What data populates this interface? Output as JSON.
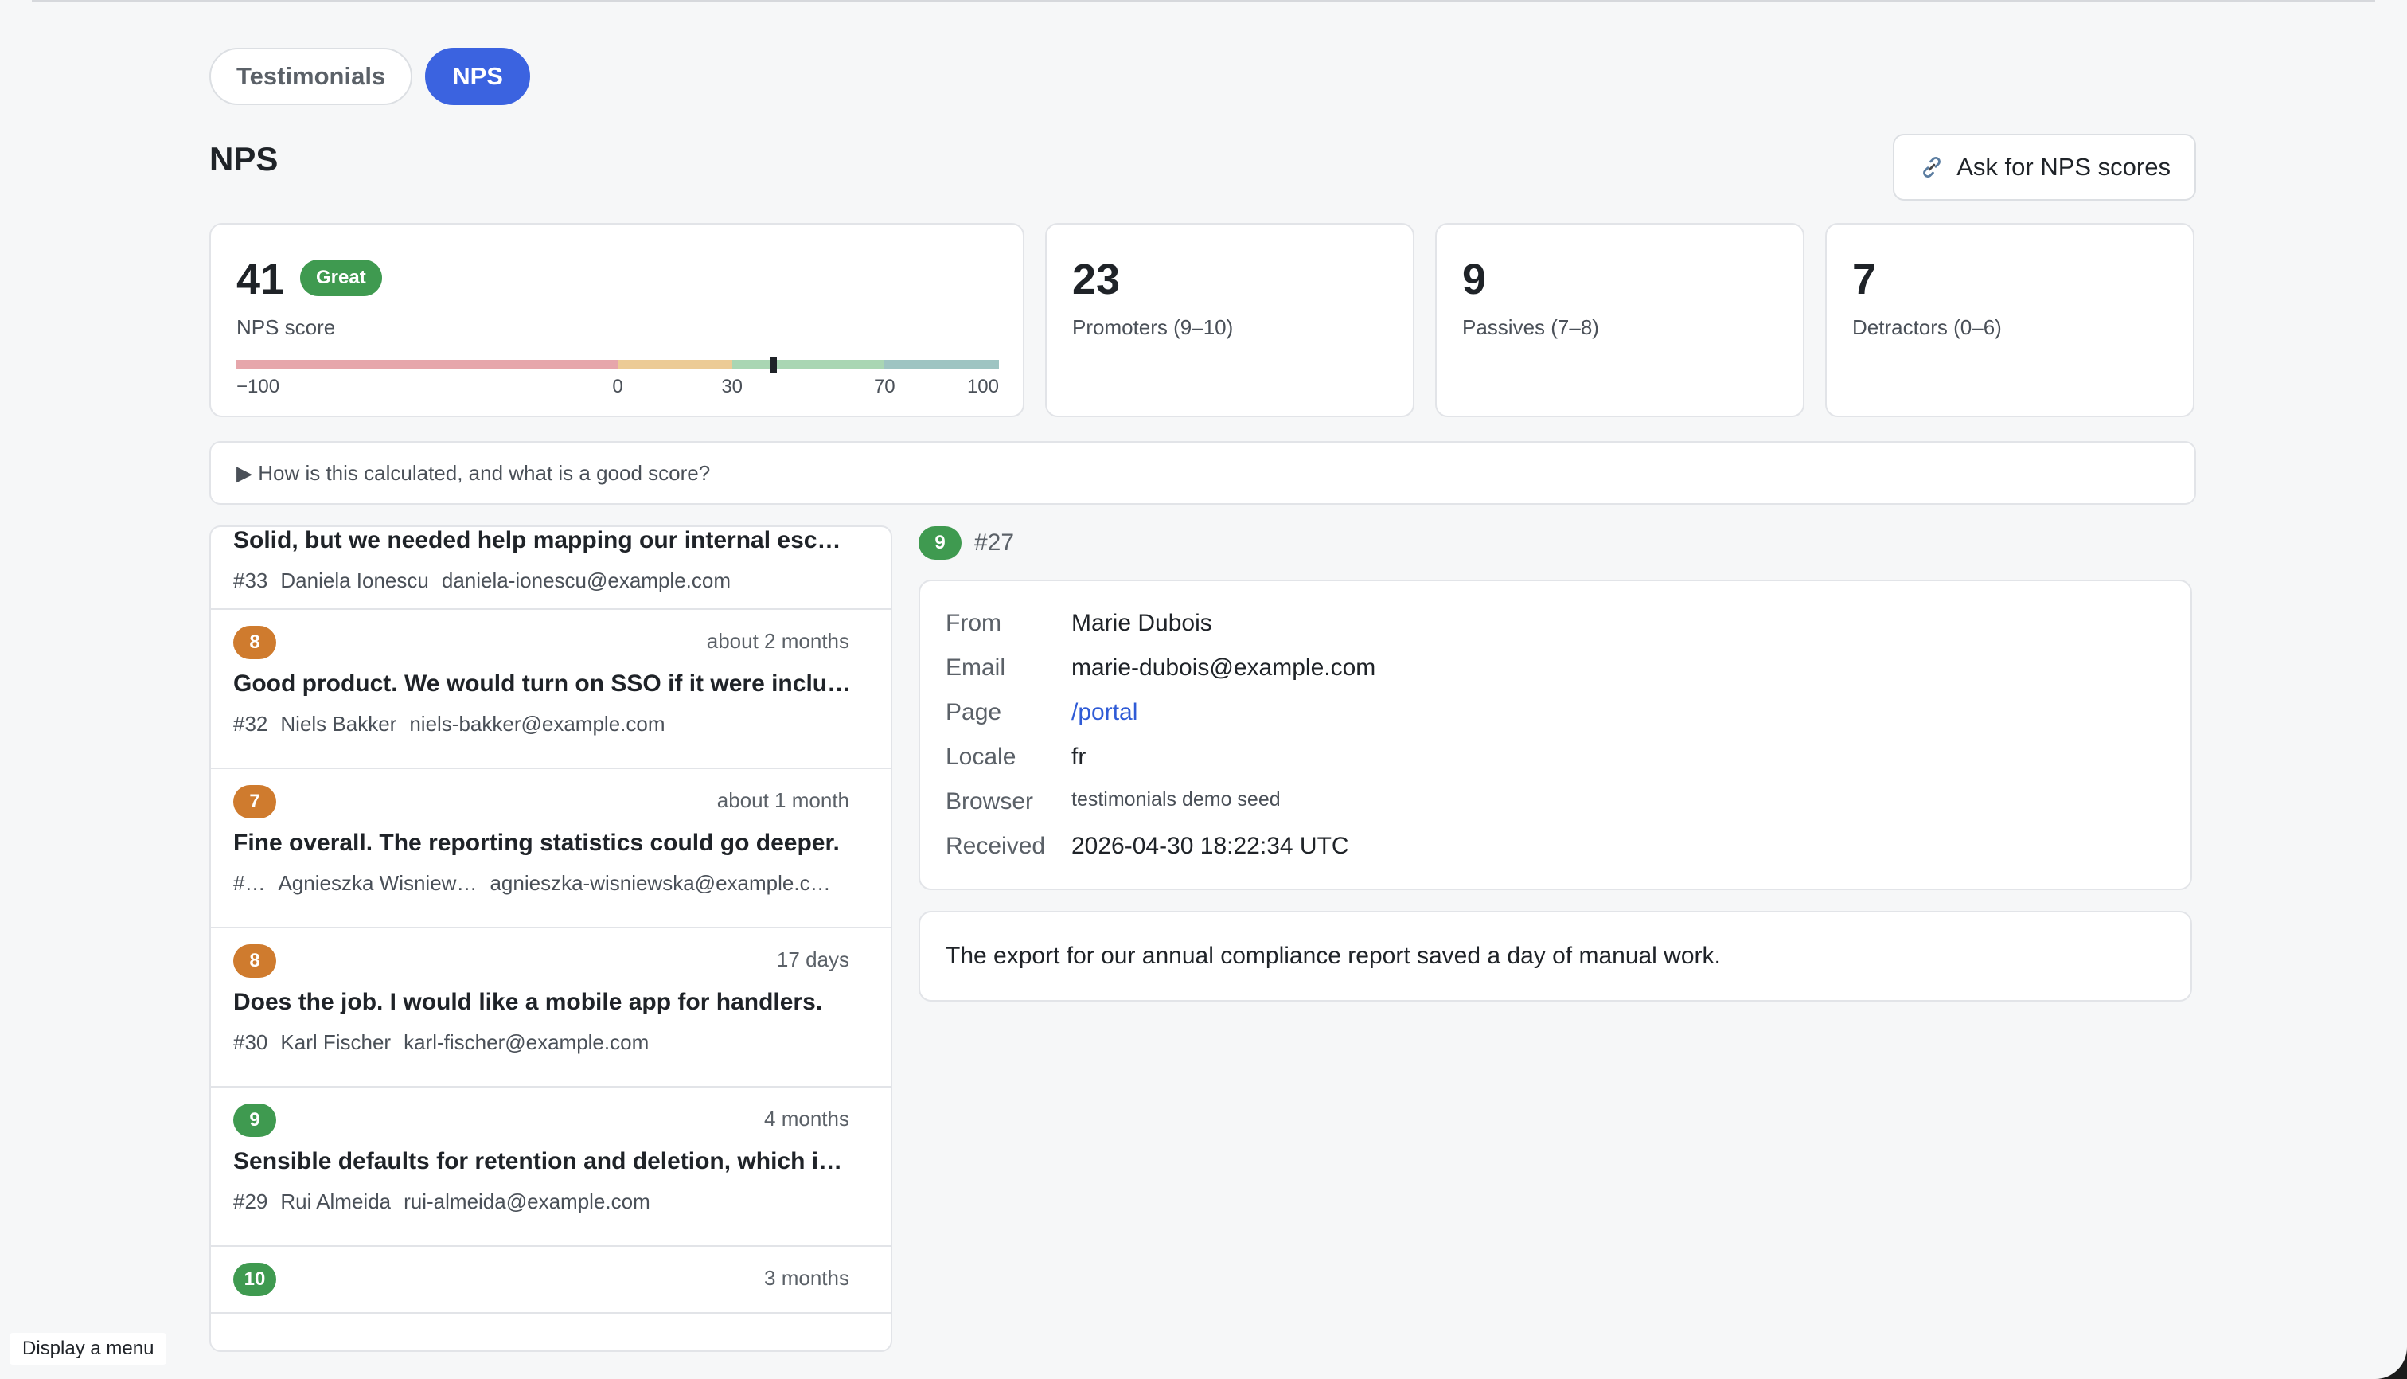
{
  "tabs": [
    {
      "label": "Testimonials",
      "active": false
    },
    {
      "label": "NPS",
      "active": true
    }
  ],
  "title": "NPS",
  "ask_button": {
    "icon": "link-icon",
    "label": "Ask for NPS scores"
  },
  "score_card": {
    "value": "41",
    "badge": "Great",
    "label": "NPS score",
    "nps": 41,
    "scale_ticks": [
      "−100",
      "0",
      "30",
      "70",
      "100"
    ],
    "colors": {
      "poor": "#e6a6ab",
      "ok": "#eccb96",
      "good": "#a9d6b3",
      "great": "#9ec4c2",
      "badge": "#3f9a50"
    }
  },
  "stat_cards": [
    {
      "value": "23",
      "label": "Promoters (9–10)"
    },
    {
      "value": "9",
      "label": "Passives (7–8)"
    },
    {
      "value": "7",
      "label": "Detractors (0–6)"
    }
  ],
  "calc_toggle": "▶ How is this calculated, and what is a good score?",
  "responses": [
    {
      "score": "",
      "time": "",
      "text": "Solid, but we needed help mapping our internal esca…",
      "id": "#33",
      "name": "Daniela Ionescu",
      "email": "daniela-ionescu@example.com"
    },
    {
      "score": "8",
      "time": "about 2 months",
      "text": "Good product. We would turn on SSO if it were inclu…",
      "id": "#32",
      "name": "Niels Bakker",
      "email": "niels-bakker@example.com"
    },
    {
      "score": "7",
      "time": "about 1 month",
      "text": "Fine overall. The reporting statistics could go deeper.",
      "id": "#…",
      "name": "Agnieszka Wisniew…",
      "email": "agnieszka-wisniewska@example.c…"
    },
    {
      "score": "8",
      "time": "17 days",
      "text": "Does the job. I would like a mobile app for handlers.",
      "id": "#30",
      "name": "Karl Fischer",
      "email": "karl-fischer@example.com"
    },
    {
      "score": "9",
      "time": "4 months",
      "text": "Sensible defaults for retention and deletion, which i…",
      "id": "#29",
      "name": "Rui Almeida",
      "email": "rui-almeida@example.com"
    },
    {
      "score": "10",
      "time": "3 months",
      "text": "",
      "id": "",
      "name": "",
      "email": ""
    }
  ],
  "badge_colors": {
    "promoter": "#3f9a50",
    "passive": "#cf7b2e"
  },
  "detail": {
    "score": "9",
    "id": "#27",
    "fields": [
      {
        "key": "From",
        "value": "Marie Dubois"
      },
      {
        "key": "Email",
        "value": "marie-dubois@example.com"
      },
      {
        "key": "Page",
        "value": "/portal"
      },
      {
        "key": "Locale",
        "value": "fr"
      },
      {
        "key": "Browser",
        "value": "testimonials demo seed"
      },
      {
        "key": "Received",
        "value": "2026-04-30 18:22:34 UTC"
      }
    ],
    "comment": "The export for our annual compliance report saved a day of manual work."
  },
  "tooltip": "Display a menu"
}
